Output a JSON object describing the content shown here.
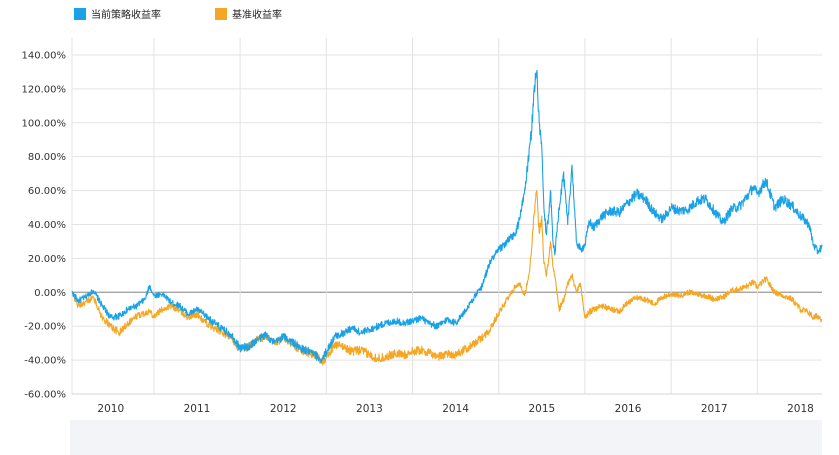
{
  "chart_data": {
    "type": "line",
    "title": "",
    "xlabel": "",
    "ylabel": "",
    "x_range": [
      2009.55,
      2018.25
    ],
    "ylim": [
      -60,
      150
    ],
    "y_ticks": [
      140,
      120,
      100,
      80,
      60,
      40,
      20,
      0,
      -20,
      -40,
      -60
    ],
    "y_tick_labels": [
      "140.00%",
      "120.00%",
      "100.00%",
      "80.00%",
      "60.00%",
      "40.00%",
      "20.00%",
      "0.00%",
      "-20.00%",
      "-40.00%",
      "-60.00%"
    ],
    "x_tick_positions": [
      2010,
      2011,
      2012,
      2013,
      2014,
      2015,
      2016,
      2017,
      2018
    ],
    "x_tick_labels": [
      "2010",
      "2011",
      "2012",
      "2013",
      "2014",
      "2015",
      "2016",
      "2017",
      "2018"
    ],
    "year_boundaries": [
      2010.5,
      2011.5,
      2012.5,
      2013.5,
      2014.5,
      2015.5,
      2016.5,
      2017.5
    ],
    "grid": true,
    "legend_position": "top-left",
    "series": [
      {
        "name": "当前策略收益率",
        "color": "#1aa2e6",
        "x": [
          2009.55,
          2009.62,
          2009.7,
          2009.8,
          2009.9,
          2010.0,
          2010.1,
          2010.2,
          2010.3,
          2010.4,
          2010.45,
          2010.5,
          2010.6,
          2010.7,
          2010.8,
          2010.9,
          2011.0,
          2011.1,
          2011.2,
          2011.3,
          2011.4,
          2011.5,
          2011.6,
          2011.7,
          2011.8,
          2011.9,
          2012.0,
          2012.1,
          2012.2,
          2012.3,
          2012.4,
          2012.45,
          2012.5,
          2012.6,
          2012.7,
          2012.8,
          2012.9,
          2013.0,
          2013.1,
          2013.2,
          2013.3,
          2013.4,
          2013.5,
          2013.6,
          2013.7,
          2013.8,
          2013.9,
          2014.0,
          2014.1,
          2014.2,
          2014.3,
          2014.4,
          2014.5,
          2014.6,
          2014.7,
          2014.75,
          2014.8,
          2014.85,
          2014.88,
          2014.91,
          2014.94,
          2014.97,
          2015.0,
          2015.02,
          2015.05,
          2015.08,
          2015.1,
          2015.13,
          2015.15,
          2015.2,
          2015.25,
          2015.3,
          2015.35,
          2015.4,
          2015.45,
          2015.5,
          2015.55,
          2015.6,
          2015.7,
          2015.8,
          2015.9,
          2016.0,
          2016.1,
          2016.2,
          2016.3,
          2016.4,
          2016.5,
          2016.6,
          2016.7,
          2016.8,
          2016.9,
          2017.0,
          2017.1,
          2017.2,
          2017.3,
          2017.4,
          2017.45,
          2017.5,
          2017.6,
          2017.7,
          2017.8,
          2017.9,
          2018.0,
          2018.1,
          2018.15,
          2018.2,
          2018.25
        ],
        "values": [
          0,
          -5,
          -3,
          1,
          -8,
          -15,
          -14,
          -10,
          -8,
          -4,
          4,
          -2,
          -1,
          -6,
          -8,
          -13,
          -10,
          -14,
          -18,
          -22,
          -25,
          -33,
          -32,
          -28,
          -25,
          -30,
          -26,
          -29,
          -33,
          -35,
          -38,
          -40,
          -35,
          -26,
          -24,
          -21,
          -24,
          -22,
          -20,
          -18,
          -17,
          -18,
          -17,
          -15,
          -19,
          -20,
          -16,
          -18,
          -12,
          -4,
          3,
          18,
          25,
          30,
          35,
          45,
          60,
          80,
          95,
          120,
          130,
          100,
          85,
          55,
          35,
          45,
          60,
          30,
          22,
          50,
          70,
          40,
          75,
          30,
          25,
          28,
          42,
          38,
          45,
          48,
          47,
          53,
          58,
          55,
          47,
          43,
          50,
          48,
          49,
          54,
          55,
          48,
          41,
          49,
          51,
          58,
          62,
          58,
          66,
          50,
          55,
          51,
          45,
          40,
          28,
          24,
          27
        ]
      },
      {
        "name": "基准收益率",
        "color": "#f5a623",
        "x": [
          2009.55,
          2009.62,
          2009.7,
          2009.8,
          2009.9,
          2010.0,
          2010.1,
          2010.2,
          2010.3,
          2010.4,
          2010.45,
          2010.5,
          2010.6,
          2010.7,
          2010.8,
          2010.9,
          2011.0,
          2011.1,
          2011.2,
          2011.3,
          2011.4,
          2011.5,
          2011.6,
          2011.7,
          2011.8,
          2011.9,
          2012.0,
          2012.1,
          2012.2,
          2012.3,
          2012.4,
          2012.45,
          2012.5,
          2012.6,
          2012.7,
          2012.8,
          2012.9,
          2013.0,
          2013.1,
          2013.2,
          2013.3,
          2013.4,
          2013.5,
          2013.6,
          2013.7,
          2013.8,
          2013.9,
          2014.0,
          2014.1,
          2014.2,
          2014.3,
          2014.4,
          2014.5,
          2014.6,
          2014.7,
          2014.75,
          2014.8,
          2014.85,
          2014.88,
          2014.91,
          2014.94,
          2014.97,
          2015.0,
          2015.02,
          2015.05,
          2015.08,
          2015.1,
          2015.13,
          2015.15,
          2015.2,
          2015.25,
          2015.3,
          2015.35,
          2015.4,
          2015.45,
          2015.5,
          2015.55,
          2015.6,
          2015.7,
          2015.8,
          2015.9,
          2016.0,
          2016.1,
          2016.2,
          2016.3,
          2016.4,
          2016.5,
          2016.6,
          2016.7,
          2016.8,
          2016.9,
          2017.0,
          2017.1,
          2017.2,
          2017.3,
          2017.4,
          2017.45,
          2017.5,
          2017.6,
          2017.7,
          2017.8,
          2017.9,
          2018.0,
          2018.1,
          2018.15,
          2018.2,
          2018.25
        ],
        "values": [
          0,
          -8,
          -6,
          -3,
          -15,
          -20,
          -24,
          -18,
          -14,
          -12,
          -11,
          -14,
          -10,
          -8,
          -11,
          -15,
          -13,
          -18,
          -21,
          -24,
          -27,
          -34,
          -32,
          -28,
          -26,
          -30,
          -27,
          -30,
          -34,
          -36,
          -38,
          -41,
          -38,
          -31,
          -32,
          -35,
          -34,
          -37,
          -39,
          -38,
          -36,
          -37,
          -35,
          -34,
          -36,
          -38,
          -36,
          -37,
          -34,
          -31,
          -27,
          -22,
          -12,
          -4,
          4,
          5,
          -2,
          10,
          25,
          45,
          60,
          35,
          45,
          20,
          10,
          20,
          30,
          15,
          10,
          -10,
          -5,
          5,
          10,
          0,
          5,
          -15,
          -12,
          -10,
          -8,
          -10,
          -11,
          -6,
          -3,
          -4,
          -7,
          -3,
          -1,
          -2,
          0,
          -1,
          -2,
          -4,
          -3,
          1,
          2,
          4,
          6,
          3,
          8,
          0,
          -2,
          -4,
          -10,
          -12,
          -15,
          -14,
          -16
        ]
      }
    ]
  }
}
